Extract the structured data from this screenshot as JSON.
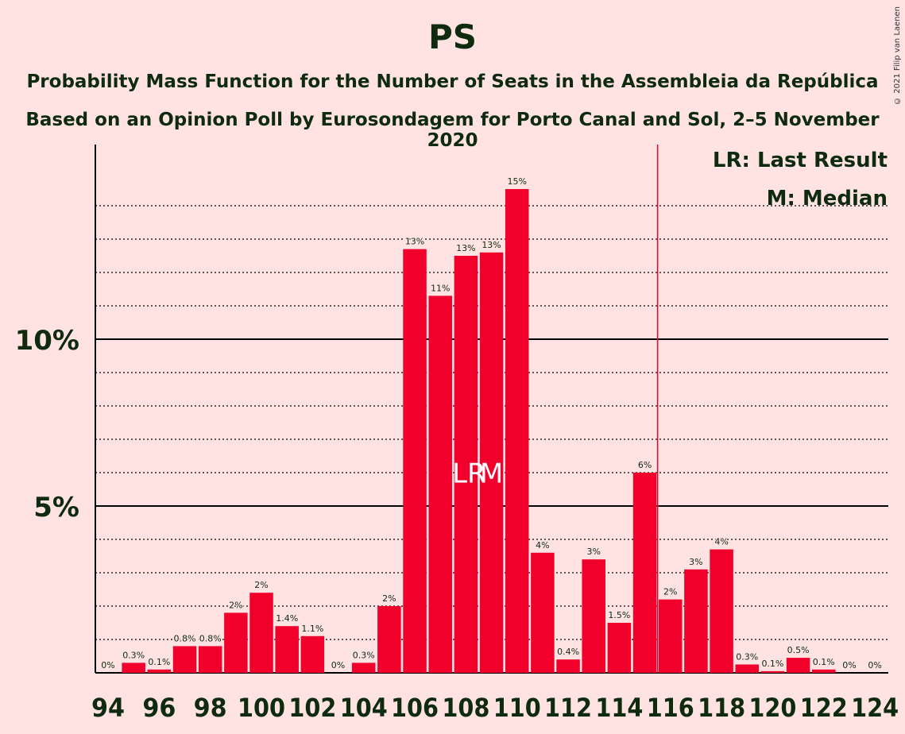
{
  "title": "PS",
  "subtitle": "Probability Mass Function for the Number of Seats in the Assembleia da República",
  "subtitle2": "Based on an Opinion Poll by Eurosondagem for Porto Canal and Sol, 2–5 November 2020",
  "copyright": "© 2021 Filip van Laenen",
  "legend": {
    "last_result": "LR: Last Result",
    "median": "M: Median"
  },
  "colors": {
    "bar": "#F0002B",
    "background": "#FFE2E2",
    "text": "#0f2b0f",
    "last_result_line": "#F0002B"
  },
  "chart_data": {
    "type": "bar",
    "x": [
      94,
      95,
      96,
      97,
      98,
      99,
      100,
      101,
      102,
      103,
      104,
      105,
      106,
      107,
      108,
      109,
      110,
      111,
      112,
      113,
      114,
      115,
      116,
      117,
      118,
      119,
      120,
      121,
      122,
      123,
      124
    ],
    "values": [
      0,
      0.3,
      0.1,
      0.8,
      0.8,
      1.8,
      2.4,
      1.4,
      1.1,
      0,
      0.3,
      2.0,
      12.7,
      11.3,
      12.5,
      12.6,
      14.5,
      3.6,
      0.4,
      3.4,
      1.5,
      6.0,
      2.2,
      3.1,
      3.7,
      0.25,
      0.05,
      0.45,
      0.1,
      0,
      0
    ],
    "value_labels": [
      "0%",
      "0.3%",
      "0.1%",
      "0.8%",
      "0.8%",
      "2%",
      "2%",
      "1.4%",
      "1.1%",
      "0%",
      "0.3%",
      "2%",
      "13%",
      "11%",
      "13%",
      "13%",
      "15%",
      "4%",
      "0.4%",
      "3%",
      "1.5%",
      "6%",
      "2%",
      "3%",
      "4%",
      "0.3%",
      "0.1%",
      "0.5%",
      "0.1%",
      "0%",
      "0%"
    ],
    "x_tick_labels": [
      "94",
      "96",
      "98",
      "100",
      "102",
      "104",
      "106",
      "108",
      "110",
      "112",
      "114",
      "116",
      "118",
      "120",
      "122",
      "124"
    ],
    "y_tick_labels": [
      {
        "value": 5,
        "label": "5%"
      },
      {
        "value": 10,
        "label": "10%"
      }
    ],
    "ylim": [
      0,
      15.8
    ],
    "minor_grid_step": 1,
    "last_result_seat": 108,
    "median_seat": 109,
    "last_result_marker": "LR",
    "median_marker": "M",
    "last_result_line_seat": 115.5
  }
}
